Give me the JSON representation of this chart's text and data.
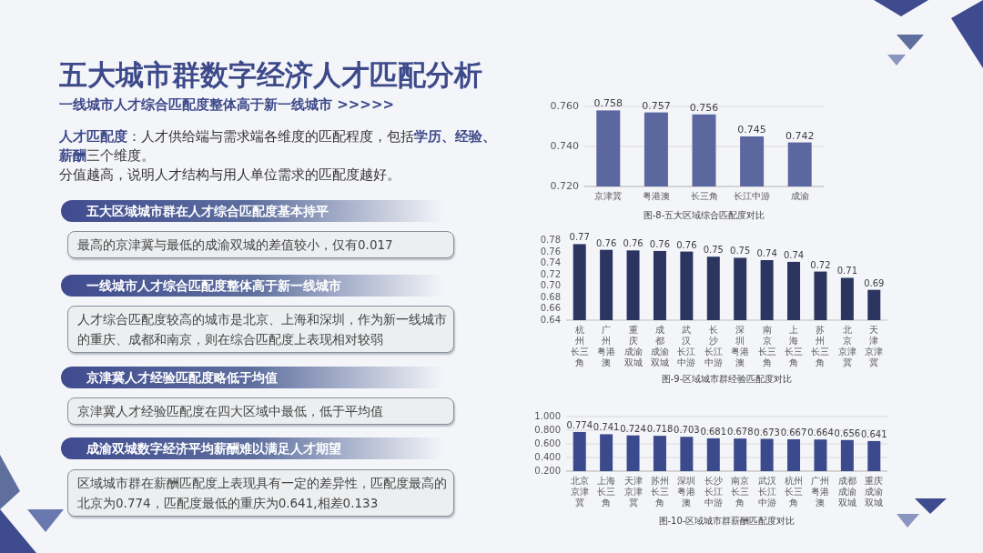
{
  "chart_data": [
    {
      "type": "bar",
      "title": "图-8-五大区域综合匹配度对比",
      "categories": [
        "京津冀",
        "粤港澳",
        "长三角",
        "长江中游",
        "成渝"
      ],
      "values": [
        0.758,
        0.757,
        0.756,
        0.745,
        0.742
      ],
      "color": "#5b679e",
      "ylim": [
        0.72,
        0.76
      ],
      "yticks": [
        {
          "value": 0.72,
          "label": "0.720"
        },
        {
          "value": 0.74,
          "label": "0.740"
        },
        {
          "value": 0.76,
          "label": "0.760"
        }
      ],
      "grid": "y",
      "data_labels": true
    },
    {
      "type": "bar",
      "title": "图-9-区域城市群经验匹配度对比",
      "categories": [
        "杭州长三角",
        "广州粤港澳",
        "重庆成渝双城",
        "成都成渝双城",
        "武汉长江中游",
        "长沙长江中游",
        "深圳粤港澳",
        "南京长三角",
        "上海长三角",
        "苏州长三角",
        "北京京津冀",
        "天津京津冀"
      ],
      "values": [
        0.773,
        0.763,
        0.762,
        0.761,
        0.76,
        0.751,
        0.749,
        0.745,
        0.742,
        0.725,
        0.714,
        0.693
      ],
      "value_labels": [
        "0.77",
        "0.76",
        "0.76",
        "0.76",
        "0.76",
        "0.75",
        "0.75",
        "0.74",
        "0.74",
        "0.72",
        "0.71",
        "0.69"
      ],
      "color": "#2b3560",
      "ylim": [
        0.64,
        0.78
      ],
      "yticks": [
        0.64,
        0.66,
        0.68,
        {
          "value": 0.7,
          "label": "0.70"
        },
        0.72,
        0.74,
        0.76,
        0.78
      ]
    },
    {
      "type": "bar",
      "title": "图-10-区域城市群薪酬匹配度对比",
      "categories": [
        "北京京津冀",
        "上海长三角",
        "天津京津冀",
        "苏州长三角",
        "深圳粤港澳",
        "长沙长江中游",
        "南京长三角",
        "武汉长江中游",
        "杭州长三角",
        "广州粤港澳",
        "成都成渝双城",
        "重庆成渝双城"
      ],
      "values": [
        0.774,
        0.741,
        0.724,
        0.718,
        0.703,
        0.681,
        0.678,
        0.673,
        0.667,
        0.664,
        0.656,
        0.641
      ],
      "color": "#3a4a8c",
      "ylim": [
        0.2,
        1.0
      ],
      "yticks": [
        {
          "value": 0.2,
          "label": "0.200"
        },
        {
          "value": 0.4,
          "label": "0.400"
        },
        {
          "value": 0.6,
          "label": "0.600"
        },
        {
          "value": 0.8,
          "label": "0.800"
        },
        {
          "value": 1.0,
          "label": "1.000"
        }
      ],
      "grid": "y",
      "data_labels": true
    },
    {
      "type": "other",
      "title": "五大城市群数字经济人才匹配分析",
      "subtitle": "一线城市人才综合匹配度整体高于新一线城市 >>>>>",
      "annotations": [
        "**人才匹配度**：人才供给端与需求端各维度的匹配程度，包括**学历、经验、薪酬**三个维度。",
        "分值越高，说明人才结构与用人单位需求的匹配度越好。",
        "五大区域城市群在人才综合匹配度基本持平",
        "最高的京津冀与最低的成渝双城的差值较小，仅有0.017",
        "一线城市人才综合匹配度整体高于新一线城市",
        "人才综合匹配度较高的城市是北京、上海和深圳，作为新一线城市的重庆、成都和南京，则在综合匹配度上表现相对较弱",
        "京津冀人才经验匹配度略低于均值",
        "京津冀人才经验匹配度在四大区域中最低，低于平均值",
        "成渝双城数字经济平均薪酬难以满足人才期望",
        "区域城市群在薪酬匹配度上表现具有一定的差异性，匹配度最高的北京为0.774，匹配度最低的重庆为0.641,相差0.133"
      ]
    }
  ]
}
